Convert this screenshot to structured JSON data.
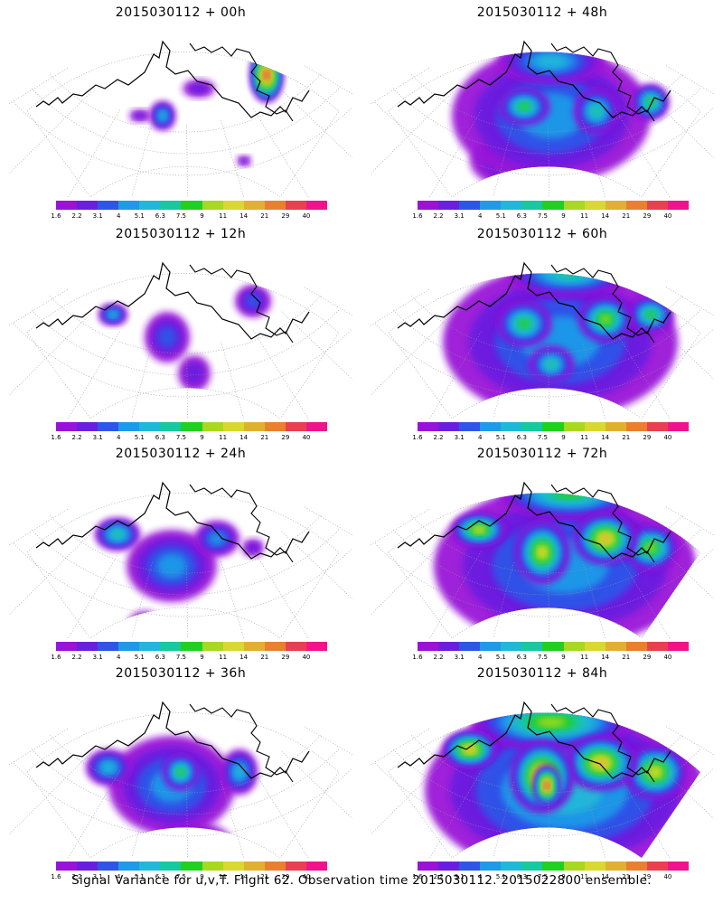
{
  "panels": [
    {
      "title": "2015030112 + 00h",
      "hour": "00"
    },
    {
      "title": "2015030112 + 48h",
      "hour": "48"
    },
    {
      "title": "2015030112 + 12h",
      "hour": "12"
    },
    {
      "title": "2015030112 + 60h",
      "hour": "60"
    },
    {
      "title": "2015030112 + 24h",
      "hour": "24"
    },
    {
      "title": "2015030112 + 72h",
      "hour": "72"
    },
    {
      "title": "2015030112 + 36h",
      "hour": "36"
    },
    {
      "title": "2015030112 + 84h",
      "hour": "84"
    }
  ],
  "colorbar": {
    "labels": [
      "1.6",
      "2.2",
      "3.1",
      "4",
      "5.1",
      "6.3",
      "7.5",
      "9",
      "11",
      "14",
      "21",
      "29",
      "40"
    ],
    "colors": [
      "#9a12d8",
      "#6a1fe0",
      "#2f55e8",
      "#1f9ae8",
      "#20b8d8",
      "#18c8a0",
      "#20d020",
      "#a8d820",
      "#d8d830",
      "#e0b030",
      "#e88030",
      "#e84050",
      "#f0148c"
    ]
  },
  "footer": "Signal Variance for u,v,T. Flight 62. Observation time 2015030112. 2015022800 ensemble."
}
